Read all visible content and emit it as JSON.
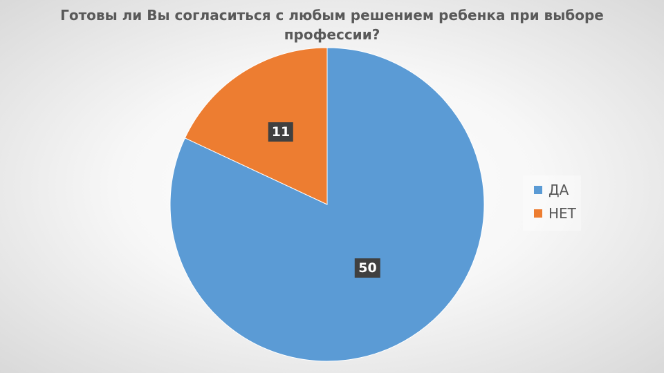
{
  "chart_data": {
    "type": "pie",
    "title": "Готовы ли Вы согласиться с любым решением ребенка при выборе профессии?",
    "title_lines": [
      "Готовы ли Вы согласиться с любым решением ребенка при выборе",
      "профессии?"
    ],
    "categories": [
      "ДА",
      "НЕТ"
    ],
    "values": [
      50,
      11
    ],
    "colors": [
      "#5B9BD5",
      "#ED7D31"
    ],
    "data_labels": [
      "50",
      "11"
    ],
    "legend_placement": "right"
  }
}
